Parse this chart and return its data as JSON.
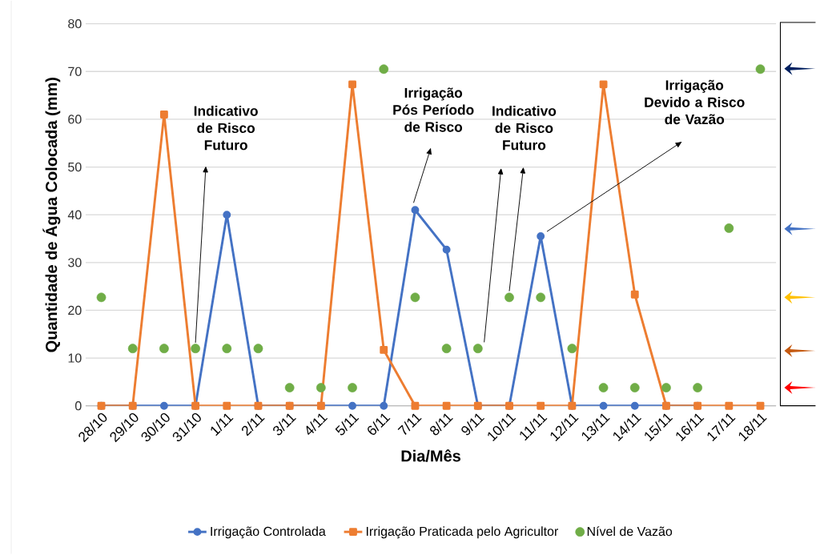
{
  "chart_data": {
    "type": "line",
    "xlabel": "Dia/Mês",
    "ylabel": "Quantidade de Água Colocada (mm)",
    "categories": [
      "28/10",
      "29/10",
      "30/10",
      "31/10",
      "1/11",
      "2/11",
      "3/11",
      "4/11",
      "5/11",
      "6/11",
      "7/11",
      "8/11",
      "9/11",
      "10/11",
      "11/11",
      "12/11",
      "13/11",
      "14/11",
      "15/11",
      "16/11",
      "17/11",
      "18/11"
    ],
    "series": [
      {
        "name": "Irrigação Controlada",
        "marker": "circle",
        "color": "#4472c4",
        "values": [
          0,
          0,
          0,
          0,
          40,
          0,
          0,
          0,
          0,
          0,
          41,
          32.7,
          0,
          0,
          35.5,
          0,
          0,
          0,
          0,
          0,
          null,
          null
        ]
      },
      {
        "name": "Irrigação Praticada pelo Agricultor",
        "marker": "square",
        "color": "#ed7d31",
        "values": [
          0,
          0,
          61,
          0,
          0,
          0,
          0,
          0,
          67.3,
          11.7,
          0,
          0,
          0,
          0,
          0,
          0,
          67.3,
          23.3,
          0,
          0,
          0,
          0
        ]
      },
      {
        "name": "Nível de Vazão",
        "type": "scatter",
        "marker": "circle",
        "color": "#70ad47",
        "values": [
          22.7,
          12,
          12,
          12,
          12,
          12,
          3.8,
          3.8,
          3.8,
          70.5,
          22.7,
          12,
          12,
          22.7,
          22.7,
          12,
          3.8,
          3.8,
          3.8,
          3.8,
          37.2,
          70.5
        ]
      }
    ],
    "ylim": [
      0,
      80
    ],
    "yticks": [
      0,
      10,
      20,
      30,
      40,
      50,
      60,
      70,
      80
    ],
    "grid": "y",
    "legend": "bottom",
    "annotations": [
      "Indicativo de Risco Futuro",
      "Irrigação Pós Período de Risco",
      "Indicativo de Risco Futuro",
      "Irrigação Devido a Risco de Vazão"
    ]
  }
}
